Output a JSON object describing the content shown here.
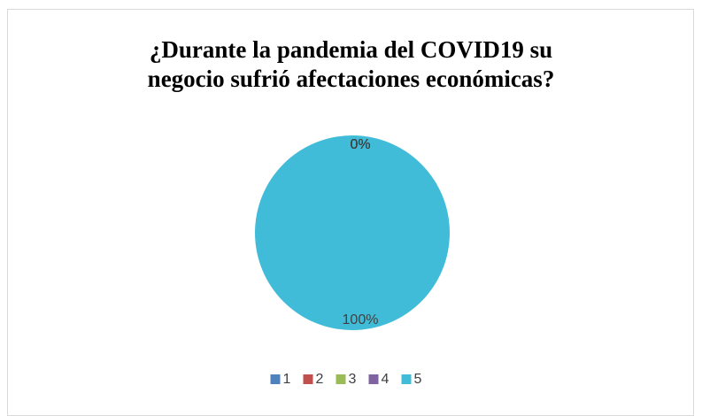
{
  "chart_data": {
    "type": "pie",
    "title": "¿Durante la pandemia del COVID19 su negocio sufrió afectaciones económicas?",
    "categories": [
      "1",
      "2",
      "3",
      "4",
      "5"
    ],
    "values": [
      0,
      0,
      0,
      0,
      100
    ],
    "value_labels": [
      "0%",
      "0%",
      "0%",
      "0%",
      "100%"
    ],
    "colors": [
      "#4f81bd",
      "#c0504d",
      "#9bbb59",
      "#8064a2",
      "#41bcd8"
    ],
    "legend": "bottom"
  }
}
